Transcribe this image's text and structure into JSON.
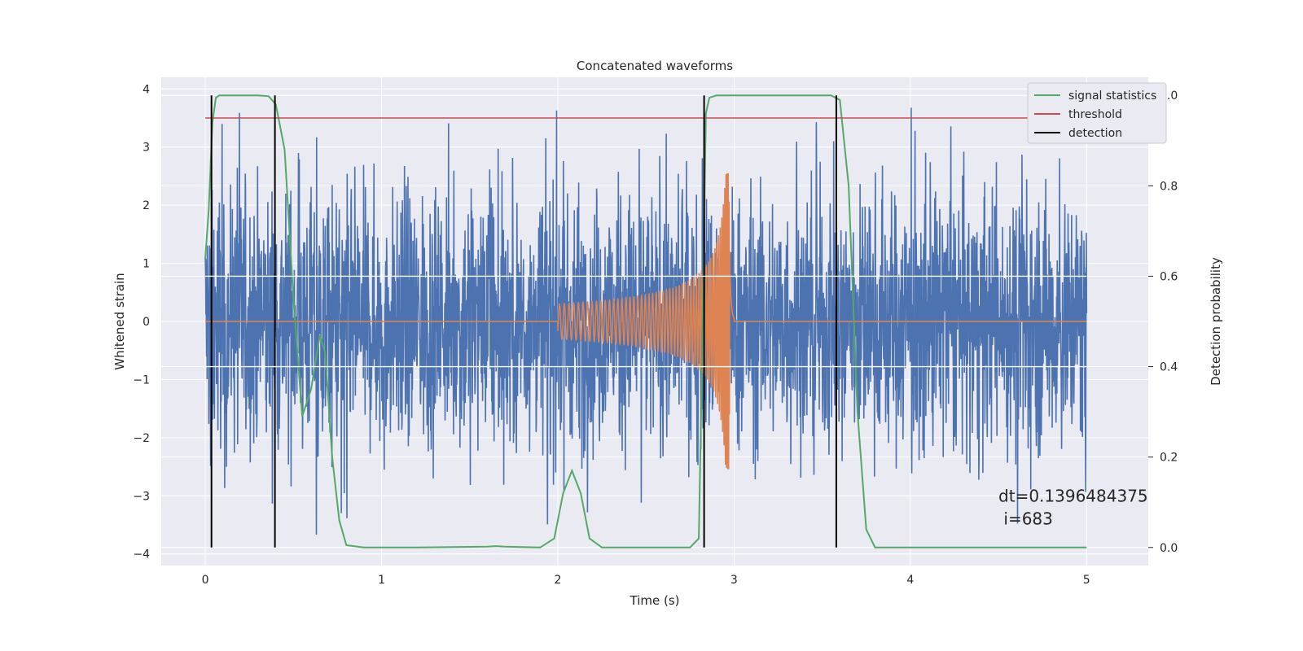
{
  "chart_data": {
    "type": "line",
    "title": "Concatenated waveforms",
    "xlabel": "Time (s)",
    "ylabel": "Whitened strain",
    "y2label": "Detection probability",
    "xlim": [
      -0.25,
      5.35
    ],
    "ylim": [
      -4.2,
      4.2
    ],
    "y2lim": [
      -0.04,
      1.04
    ],
    "xticks": [
      0,
      1,
      2,
      3,
      4,
      5
    ],
    "yticks": [
      -4,
      -3,
      -2,
      -1,
      0,
      1,
      2,
      3,
      4
    ],
    "y2ticks": [
      0.0,
      0.2,
      0.4,
      0.6,
      0.8,
      1.0
    ],
    "grid": true,
    "legend_position": "top-right",
    "legend": [
      {
        "label": "signal statistics",
        "color": "#55a868"
      },
      {
        "label": "threshold",
        "color": "#c44e52"
      },
      {
        "label": "detection",
        "color": "#000000"
      }
    ],
    "series": [
      {
        "name": "",
        "kind": "noise",
        "color": "#4c72b0",
        "x_range": [
          0,
          5
        ],
        "typical_amplitude": 2.2,
        "peak_amplitude": 3.7
      },
      {
        "name": "",
        "kind": "chirp",
        "color": "#dd8452",
        "x_range": [
          2.0,
          3.0
        ],
        "start_amplitude": 0.3,
        "peak_amplitude": 2.55,
        "peak_time": 2.97,
        "flat_value": 0
      },
      {
        "name": "signal statistics",
        "color": "#55a868",
        "axis": "right",
        "x": [
          0.0,
          0.02,
          0.04,
          0.06,
          0.08,
          0.1,
          0.2,
          0.3,
          0.36,
          0.4,
          0.45,
          0.5,
          0.55,
          0.6,
          0.65,
          0.68,
          0.72,
          0.76,
          0.8,
          0.9,
          1.2,
          1.6,
          1.65,
          1.7,
          1.9,
          1.98,
          2.03,
          2.08,
          2.13,
          2.18,
          2.25,
          2.5,
          2.75,
          2.8,
          2.82,
          2.84,
          2.86,
          2.9,
          3.0,
          3.4,
          3.55,
          3.6,
          3.65,
          3.7,
          3.75,
          3.8,
          4.0,
          4.5,
          5.0
        ],
        "y": [
          0.64,
          0.75,
          0.94,
          0.995,
          1.0,
          1.0,
          1.0,
          1.0,
          0.998,
          0.98,
          0.88,
          0.55,
          0.29,
          0.35,
          0.47,
          0.43,
          0.2,
          0.06,
          0.005,
          0.0,
          0.0,
          0.002,
          0.003,
          0.002,
          0.0,
          0.02,
          0.12,
          0.17,
          0.12,
          0.02,
          0.0,
          0.0,
          0.0,
          0.02,
          0.45,
          0.96,
          0.995,
          1.0,
          1.0,
          1.0,
          1.0,
          0.99,
          0.8,
          0.3,
          0.04,
          0.0,
          0.0,
          0.0,
          0.0
        ]
      },
      {
        "name": "threshold",
        "color": "#c44e52",
        "axis": "right",
        "x": [
          0,
          5
        ],
        "y": [
          0.95,
          0.95
        ]
      },
      {
        "name": "detection",
        "color": "#000000",
        "axis": "right",
        "type": "vlines",
        "x": [
          0.035,
          0.395,
          2.83,
          3.58
        ],
        "y_range": [
          0,
          1
        ]
      }
    ],
    "white_hlines_right": [
      0.4,
      0.6
    ],
    "annotations": [
      {
        "line1": "dt=0.1396484375",
        "line2": " i=683",
        "x": 4.5,
        "y": -3.0
      }
    ]
  }
}
